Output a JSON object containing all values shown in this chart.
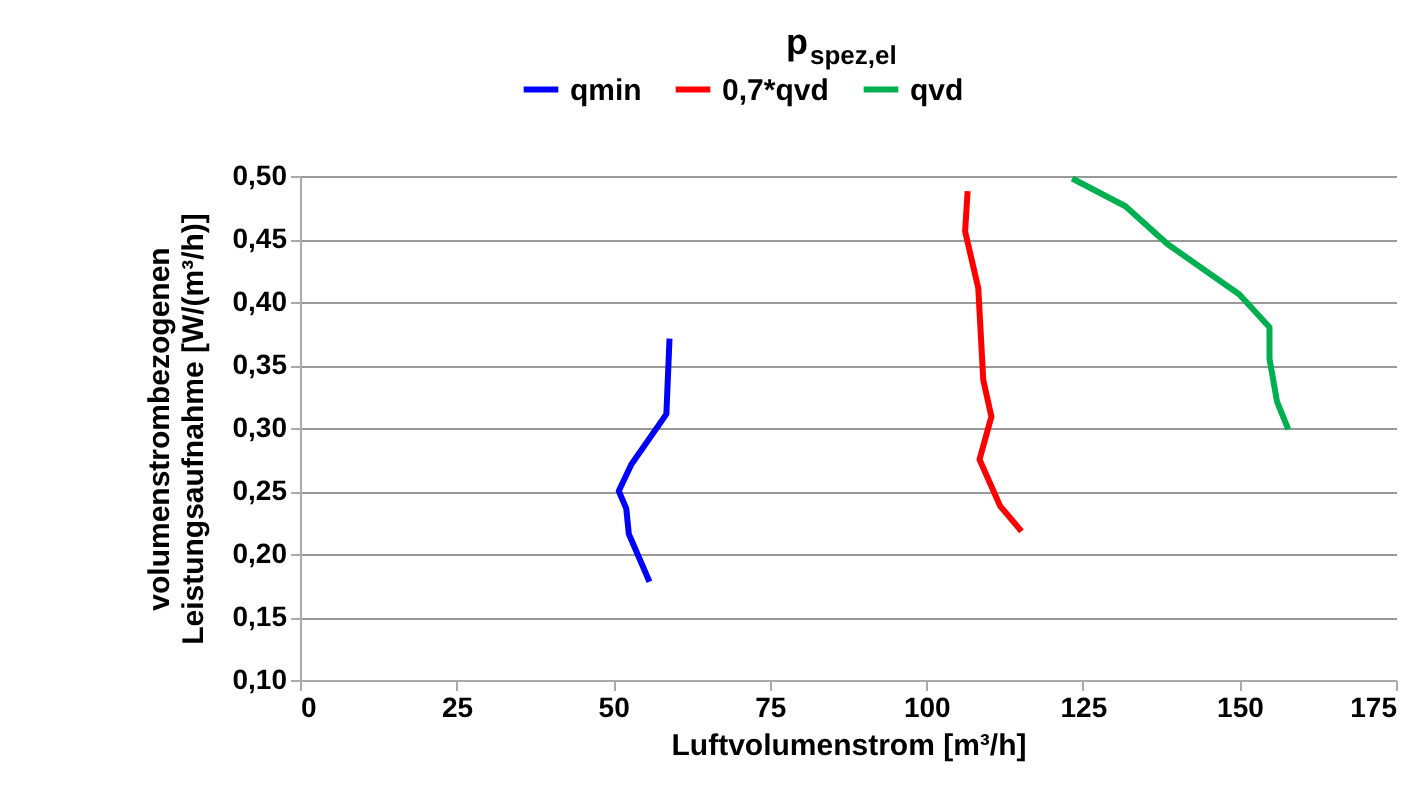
{
  "chart_data": {
    "type": "line",
    "title": "p$_{spez,el}$",
    "xlabel": "Luftvolumenstrom [m³/h]",
    "ylabel": "volumenstrombezogenen\nLeistungsaufnahme [W/(m³/h)]",
    "xlim": [
      0,
      175
    ],
    "xticks": [
      0,
      25,
      50,
      75,
      100,
      125,
      150,
      175
    ],
    "ylim": [
      0.1,
      0.5
    ],
    "yticks": [
      {
        "value": 0.1,
        "label": "0,10"
      },
      {
        "value": 0.15,
        "label": "0,15"
      },
      {
        "value": 0.2,
        "label": "0,20"
      },
      {
        "value": 0.25,
        "label": "0,25"
      },
      {
        "value": 0.3,
        "label": "0,30"
      },
      {
        "value": 0.35,
        "label": "0,35"
      },
      {
        "value": 0.4,
        "label": "0,40"
      },
      {
        "value": 0.45,
        "label": "0,45"
      },
      {
        "value": 0.5,
        "label": "0,50"
      }
    ],
    "grid": "y",
    "legend": "top",
    "marker": "none",
    "line_style": "solid",
    "series": [
      {
        "name": "qmin",
        "color": "#0000ff",
        "x": [
          59.0,
          58.5,
          52.9,
          50.9,
          52.1,
          52.5,
          55.8
        ],
        "values": [
          0.371,
          0.311,
          0.271,
          0.25,
          0.236,
          0.216,
          0.178
        ]
      },
      {
        "name": "0,7*qvd",
        "color": "#ff0000",
        "x": [
          106.6,
          106.2,
          108.3,
          109.1,
          110.4,
          108.5,
          111.8,
          115.2
        ],
        "values": [
          0.488,
          0.456,
          0.411,
          0.338,
          0.309,
          0.275,
          0.238,
          0.218
        ]
      },
      {
        "name": "qvd",
        "color": "#00b050",
        "x": [
          123.3,
          131.8,
          138.5,
          150.0,
          154.8,
          154.8,
          156.0,
          157.8
        ],
        "values": [
          0.498,
          0.476,
          0.446,
          0.406,
          0.38,
          0.355,
          0.321,
          0.299
        ]
      }
    ]
  }
}
